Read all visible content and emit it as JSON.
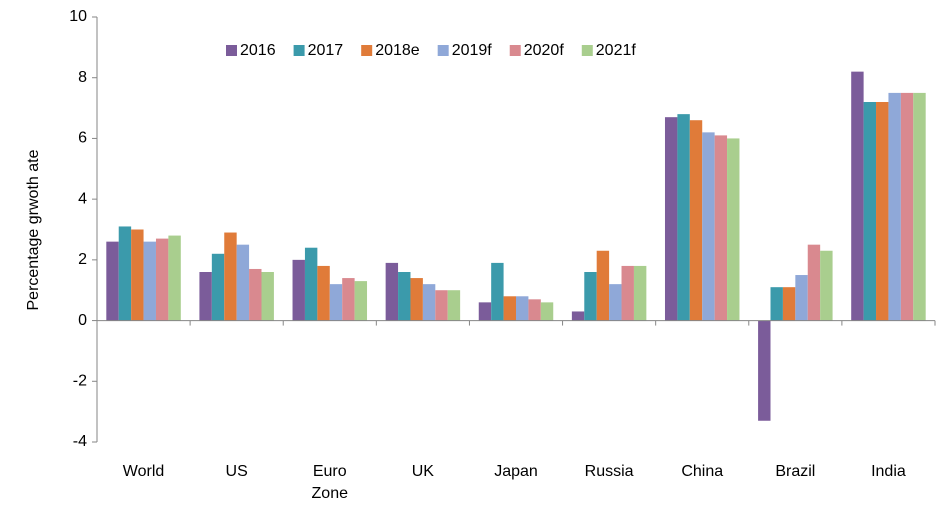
{
  "chart_data": {
    "type": "bar",
    "y_label": "Percentage grwoth ate",
    "categories": [
      "World",
      "US",
      "Euro Zone",
      "UK",
      "Japan",
      "Russia",
      "China",
      "Brazil",
      "India"
    ],
    "series": [
      {
        "name": "2016",
        "color": "#7b5c9a",
        "values": [
          2.6,
          1.6,
          2.0,
          1.9,
          0.6,
          0.3,
          6.7,
          -3.3,
          8.2
        ]
      },
      {
        "name": "2017",
        "color": "#3b9aab",
        "values": [
          3.1,
          2.2,
          2.4,
          1.6,
          1.9,
          1.6,
          6.8,
          1.1,
          7.2
        ]
      },
      {
        "name": "2018e",
        "color": "#e07b39",
        "values": [
          3.0,
          2.9,
          1.8,
          1.4,
          0.8,
          2.3,
          6.6,
          1.1,
          7.2
        ]
      },
      {
        "name": "2019f",
        "color": "#8fa8d8",
        "values": [
          2.6,
          2.5,
          1.2,
          1.2,
          0.8,
          1.2,
          6.2,
          1.5,
          7.5
        ]
      },
      {
        "name": "2020f",
        "color": "#d9898f",
        "values": [
          2.7,
          1.7,
          1.4,
          1.0,
          0.7,
          1.8,
          6.1,
          2.5,
          7.5
        ]
      },
      {
        "name": "2021f",
        "color": "#a9ce8e",
        "values": [
          2.8,
          1.6,
          1.3,
          1.0,
          0.6,
          1.8,
          6.0,
          2.3,
          7.5
        ]
      }
    ],
    "ylim": [
      -4,
      10
    ],
    "yticks": [
      -4,
      -2,
      0,
      2,
      4,
      6,
      8,
      10
    ],
    "legend": "top"
  }
}
